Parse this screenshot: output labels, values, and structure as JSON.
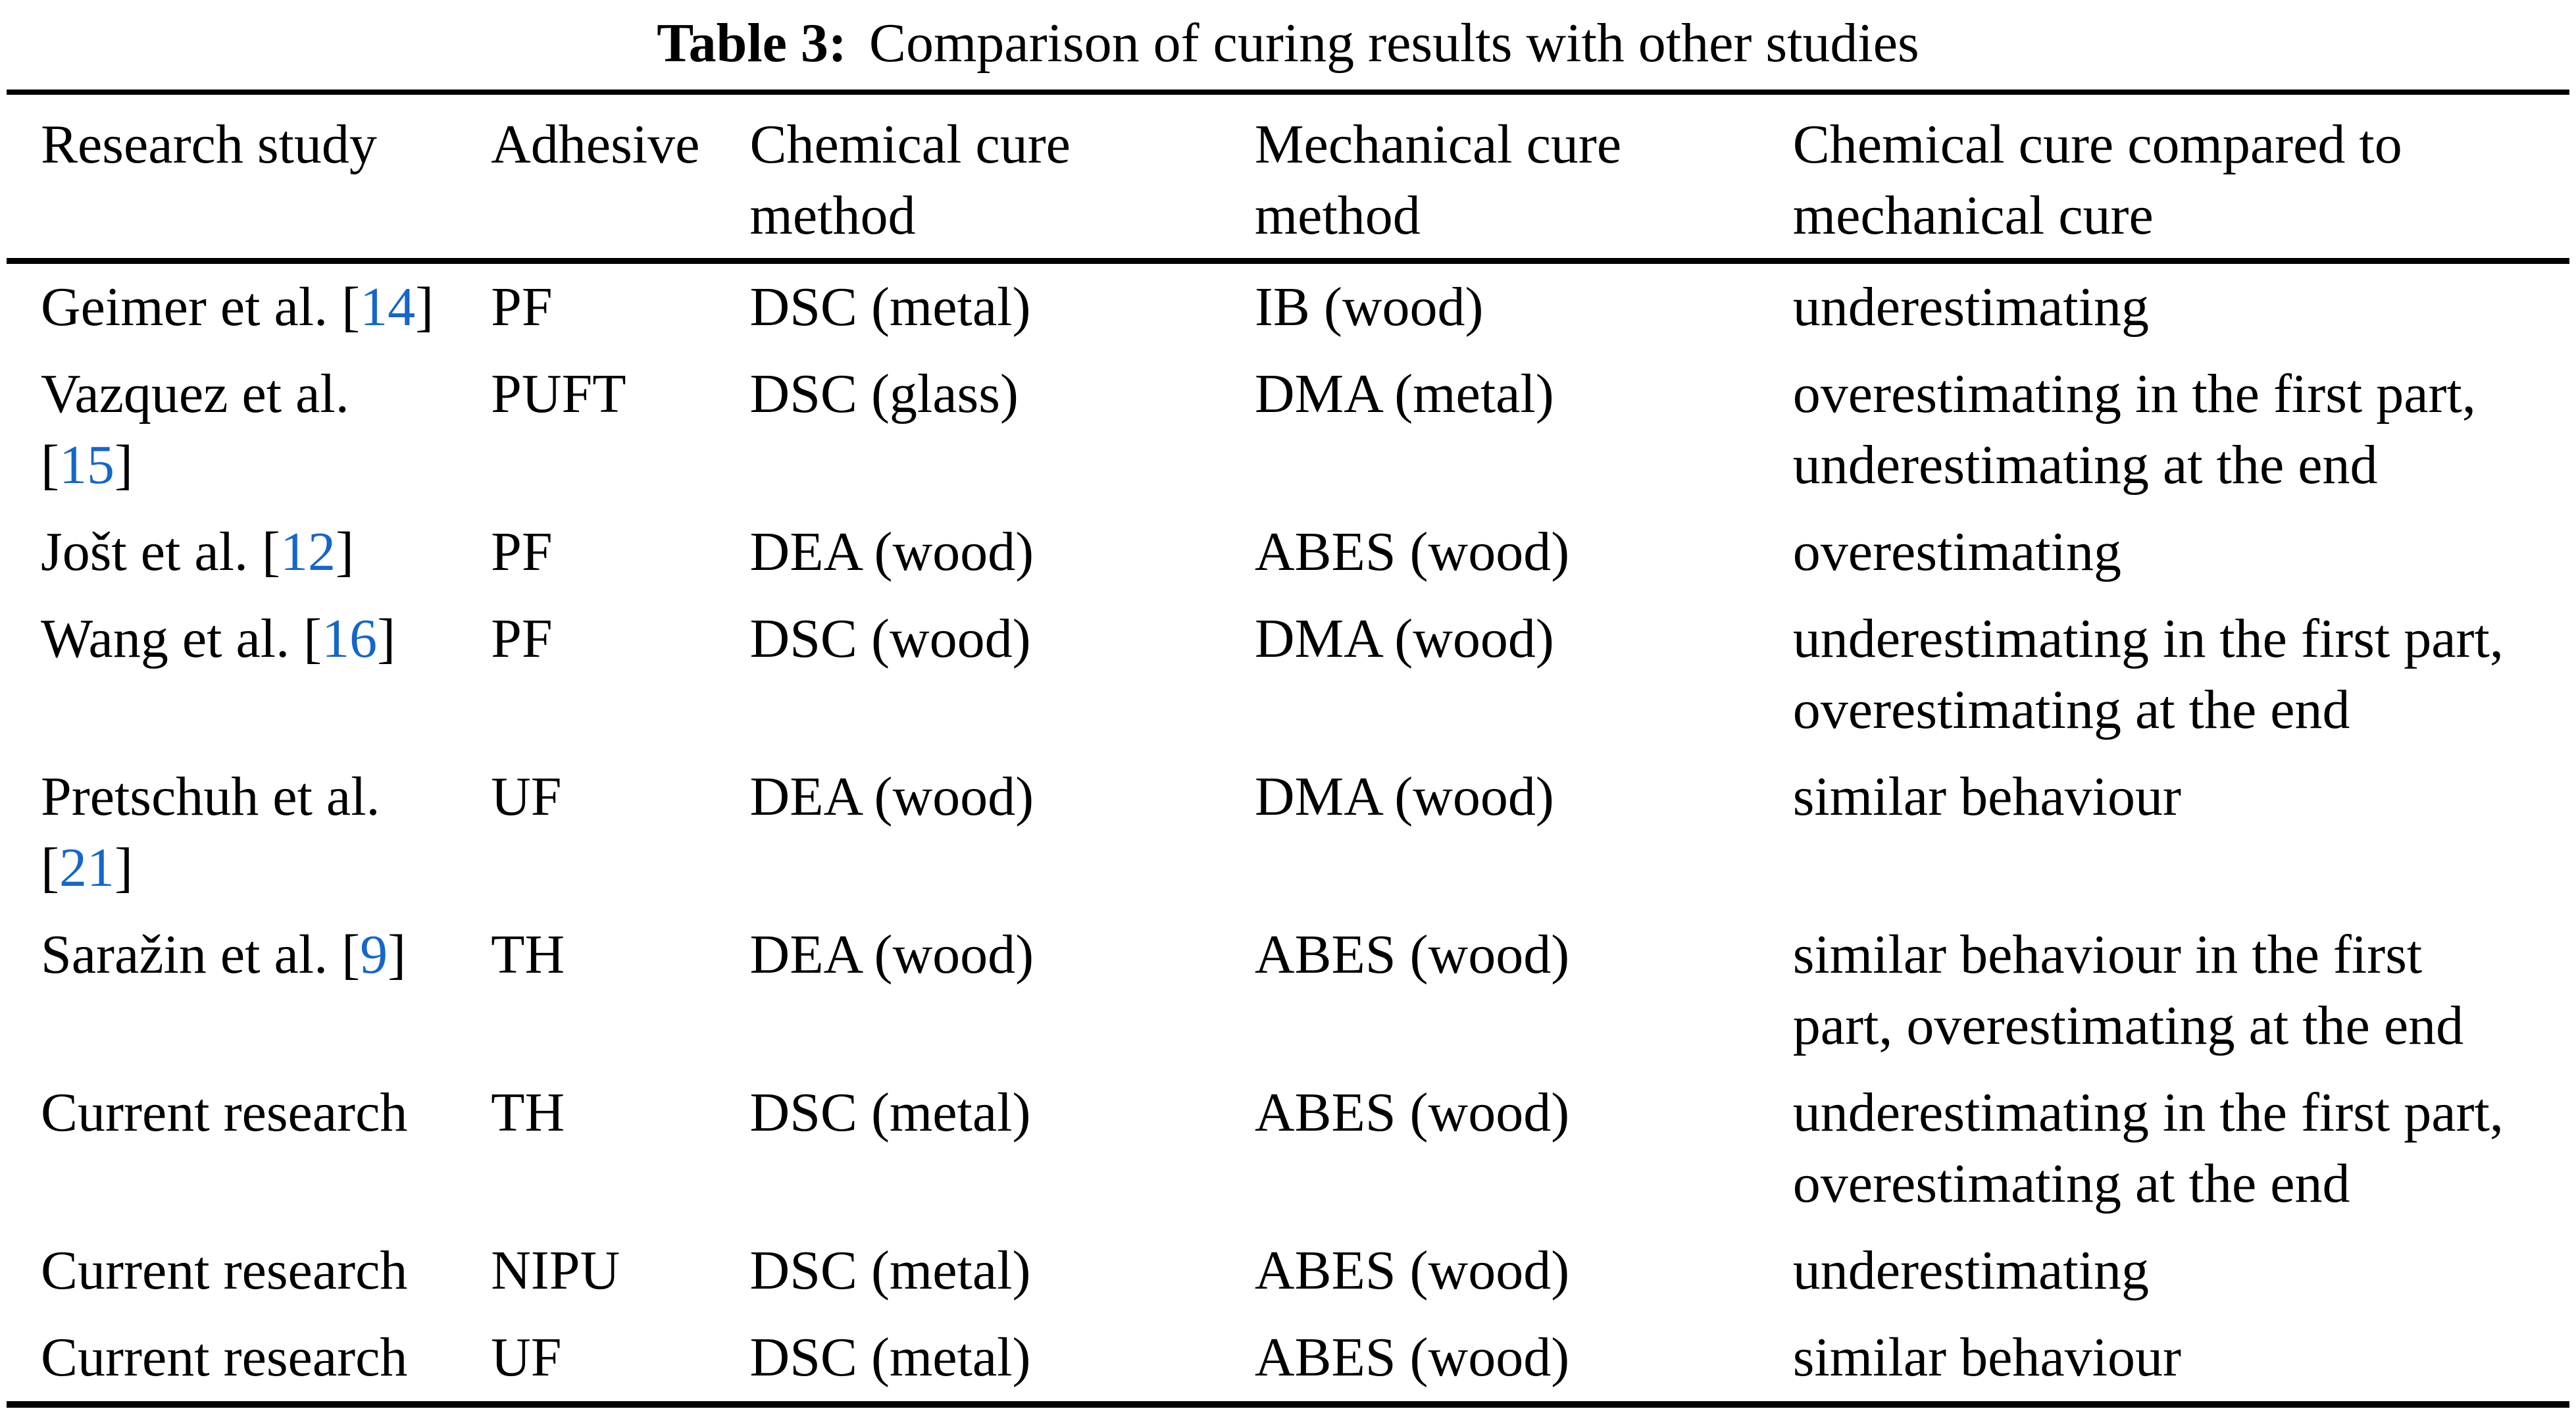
{
  "page": {
    "background": "#ffffff",
    "text_color": "#000000",
    "citation_color": "#1566cb",
    "rule_color": "#000000"
  },
  "caption": {
    "prefix": "Table 3:",
    "text": "Comparison of curing results with other studies"
  },
  "table": {
    "headers": [
      "Research study",
      "Adhesive",
      "Chemical cure\nmethod",
      "Mechanical cure\nmethod",
      "Chemical cure compared to\nmechanical cure"
    ],
    "rows": [
      {
        "study_pre": "Geimer et al. [",
        "cite": "14",
        "study_post": "]",
        "adhesive": "PF",
        "chemical_cure": "DSC (metal)",
        "mechanical_cure": "IB (wood)",
        "comparison": "underestimating"
      },
      {
        "study_pre": "Vazquez et al.\n[",
        "cite": "15",
        "study_post": "]",
        "adhesive": "PUFT",
        "chemical_cure": "DSC (glass)",
        "mechanical_cure": "DMA (metal)",
        "comparison": "overestimating in the first part,\nunderestimating at the end"
      },
      {
        "study_pre": "Jošt et al. [",
        "cite": "12",
        "study_post": "]",
        "adhesive": "PF",
        "chemical_cure": "DEA (wood)",
        "mechanical_cure": "ABES (wood)",
        "comparison": "overestimating"
      },
      {
        "study_pre": "Wang et al. [",
        "cite": "16",
        "study_post": "]",
        "adhesive": "PF",
        "chemical_cure": "DSC (wood)",
        "mechanical_cure": "DMA (wood)",
        "comparison": "underestimating in the first part,\noverestimating at the end"
      },
      {
        "study_pre": "Pretschuh et al.\n[",
        "cite": "21",
        "study_post": "]",
        "adhesive": "UF",
        "chemical_cure": "DEA (wood)",
        "mechanical_cure": "DMA (wood)",
        "comparison": "similar behaviour"
      },
      {
        "study_pre": "Saražin et al. [",
        "cite": "9",
        "study_post": "]",
        "adhesive": "TH",
        "chemical_cure": "DEA (wood)",
        "mechanical_cure": "ABES (wood)",
        "comparison": "similar behaviour in the first\npart, overestimating at the end"
      },
      {
        "study_pre": "Current research",
        "adhesive": "TH",
        "chemical_cure": "DSC (metal)",
        "mechanical_cure": "ABES (wood)",
        "comparison": "underestimating in the first part,\noverestimating at the end"
      },
      {
        "study_pre": "Current research",
        "adhesive": "NIPU",
        "chemical_cure": "DSC (metal)",
        "mechanical_cure": "ABES (wood)",
        "comparison": "underestimating"
      },
      {
        "study_pre": "Current research",
        "adhesive": "UF",
        "chemical_cure": "DSC (metal)",
        "mechanical_cure": "ABES (wood)",
        "comparison": "similar behaviour"
      }
    ]
  }
}
